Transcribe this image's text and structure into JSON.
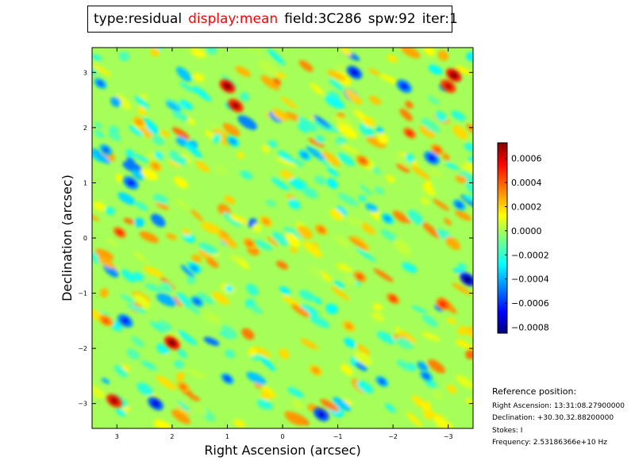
{
  "header": {
    "type": "type:residual",
    "display": "display:mean",
    "field": "field:3C286",
    "spw": "spw:92",
    "iter": "iter:1",
    "display_color": "#ff0000"
  },
  "chart_data": {
    "type": "heatmap",
    "xlabel": "Right Ascension (arcsec)",
    "ylabel": "Declination (arcsec)",
    "xlim": [
      3.45,
      -3.45
    ],
    "ylim": [
      -3.45,
      3.45
    ],
    "xticks": [
      3,
      2,
      1,
      0,
      -1,
      -2,
      -3
    ],
    "xtick_labels": [
      "3",
      "2",
      "1",
      "0",
      "−1",
      "−2",
      "−3"
    ],
    "yticks": [
      3,
      2,
      1,
      0,
      -1,
      -2,
      -3
    ],
    "ytick_labels": [
      "3",
      "2",
      "1",
      "0",
      "−1",
      "−2",
      "−3"
    ],
    "colormap": "jet",
    "value_range": [
      -0.00085,
      0.00073
    ],
    "colorbar_ticks": [
      0.0006,
      0.0004,
      0.0002,
      0.0,
      -0.0002,
      -0.0004,
      -0.0006,
      -0.0008
    ],
    "colorbar_labels": [
      "0.0006",
      "0.0004",
      "0.0002",
      "0.0000",
      "−0.0002",
      "−0.0004",
      "−0.0006",
      "−0.0008"
    ],
    "hotspots": [
      {
        "x": 1.0,
        "y": 2.75,
        "value": 0.0007
      },
      {
        "x": 0.85,
        "y": 2.4,
        "value": 0.00065
      },
      {
        "x": -3.1,
        "y": 2.95,
        "value": 0.0007
      },
      {
        "x": -3.0,
        "y": 2.75,
        "value": 0.0006
      },
      {
        "x": 2.0,
        "y": -1.9,
        "value": 0.0007
      },
      {
        "x": 3.05,
        "y": -2.95,
        "value": 0.00065
      },
      {
        "x": 2.95,
        "y": 0.1,
        "value": 0.0005
      },
      {
        "x": -2.3,
        "y": 1.9,
        "value": 0.0005
      },
      {
        "x": -1.45,
        "y": 1.4,
        "value": 0.0004
      },
      {
        "x": -2.0,
        "y": -1.1,
        "value": 0.00045
      },
      {
        "x": -1.4,
        "y": -0.7,
        "value": 0.0004
      },
      {
        "x": 0.6,
        "y": -0.1,
        "value": 0.00035
      },
      {
        "x": 0.3,
        "y": 0.3,
        "value": 0.0003
      },
      {
        "x": -0.7,
        "y": 0.15,
        "value": 0.00035
      },
      {
        "x": 3.2,
        "y": -1.5,
        "value": 0.0004
      },
      {
        "x": 1.8,
        "y": -2.7,
        "value": 0.00035
      },
      {
        "x": -2.9,
        "y": -1.2,
        "value": 0.0005
      },
      {
        "x": -2.8,
        "y": 1.6,
        "value": 0.0004
      },
      {
        "x": 2.3,
        "y": 1.3,
        "value": 0.0003
      },
      {
        "x": -0.6,
        "y": -2.4,
        "value": 0.0003
      },
      {
        "x": 2.6,
        "y": 2.1,
        "value": 0.0003
      },
      {
        "x": -1.2,
        "y": -1.6,
        "value": 0.0003
      }
    ],
    "coldspots": [
      {
        "x": -1.3,
        "y": 3.0,
        "value": -0.0007
      },
      {
        "x": -2.2,
        "y": 2.75,
        "value": -0.0006
      },
      {
        "x": -3.35,
        "y": -0.75,
        "value": -0.00085
      },
      {
        "x": -2.7,
        "y": 1.45,
        "value": -0.0006
      },
      {
        "x": 2.85,
        "y": -1.5,
        "value": -0.0006
      },
      {
        "x": 2.75,
        "y": 1.0,
        "value": -0.0006
      },
      {
        "x": -0.7,
        "y": -3.2,
        "value": -0.0007
      },
      {
        "x": 1.0,
        "y": -2.55,
        "value": -0.00055
      },
      {
        "x": 2.3,
        "y": -3.0,
        "value": -0.0007
      },
      {
        "x": 3.3,
        "y": 2.8,
        "value": -0.0005
      },
      {
        "x": 3.2,
        "y": 1.6,
        "value": -0.0005
      },
      {
        "x": -1.8,
        "y": -2.6,
        "value": -0.0005
      },
      {
        "x": -2.6,
        "y": -2.5,
        "value": -0.0005
      },
      {
        "x": 1.55,
        "y": -1.15,
        "value": -0.0005
      },
      {
        "x": -3.2,
        "y": 0.6,
        "value": -0.0005
      },
      {
        "x": -1.9,
        "y": 0.35,
        "value": -0.0004
      },
      {
        "x": -0.4,
        "y": 1.5,
        "value": -0.0004
      },
      {
        "x": 0.9,
        "y": 1.75,
        "value": -0.0004
      },
      {
        "x": 1.6,
        "y": -0.55,
        "value": -0.0004
      }
    ],
    "grid": false
  },
  "reference": {
    "heading": "Reference position:",
    "ra": "Right Ascension: 13:31:08.27900000",
    "dec": "Declination: +30.30.32.88200000",
    "stokes": "Stokes: I",
    "freq": "Frequency: 2.53186366e+10 Hz"
  }
}
